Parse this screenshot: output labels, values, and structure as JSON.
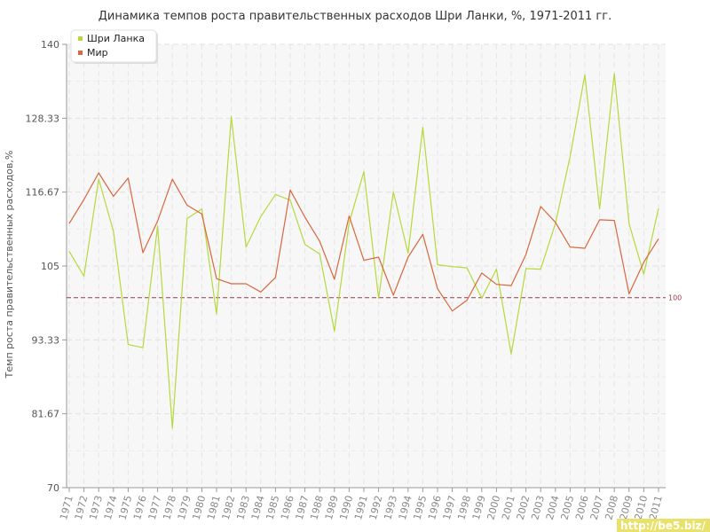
{
  "chart_data": {
    "type": "line",
    "title": "Динамика темпов роста правительственных расходов Шри Ланки, %, 1971-2011 гг.",
    "xlabel": "",
    "ylabel": "Темп роста правительственных расходов,%",
    "ylim": [
      70,
      140
    ],
    "yticks": [
      "70",
      "81.67",
      "93.33",
      "105",
      "116.67",
      "128.33",
      "140"
    ],
    "grid": true,
    "legend_position": "top-left",
    "reference_line": {
      "value": 100,
      "label": "100",
      "color": "#9b3a4a"
    },
    "categories": [
      "1971",
      "1972",
      "1973",
      "1974",
      "1975",
      "1976",
      "1977",
      "1978",
      "1979",
      "1980",
      "1981",
      "1982",
      "1983",
      "1984",
      "1985",
      "1986",
      "1987",
      "1988",
      "1989",
      "1990",
      "1991",
      "1992",
      "1993",
      "1994",
      "1995",
      "1996",
      "1997",
      "1998",
      "1999",
      "2000",
      "2001",
      "2002",
      "2003",
      "2004",
      "2005",
      "2006",
      "2007",
      "2008",
      "2009",
      "2010",
      "2011"
    ],
    "series": [
      {
        "name": "Шри Ланка",
        "color": "#b5d93c",
        "values": [
          107.3,
          103.4,
          118.7,
          110.5,
          92.6,
          92.1,
          111.3,
          79.4,
          112.5,
          114.0,
          97.4,
          128.6,
          108.0,
          112.8,
          116.3,
          115.4,
          108.4,
          106.9,
          94.7,
          111.8,
          119.9,
          99.9,
          116.7,
          107.0,
          126.9,
          105.2,
          104.9,
          104.7,
          99.9,
          104.5,
          91.1,
          104.6,
          104.5,
          111.7,
          122.3,
          135.2,
          114.0,
          135.4,
          111.7,
          103.7,
          114.1
        ]
      },
      {
        "name": "Мир",
        "color": "#d9673f",
        "values": [
          111.7,
          115.5,
          119.7,
          116.0,
          118.9,
          107.1,
          112.1,
          118.7,
          114.6,
          113.2,
          103.0,
          102.2,
          102.2,
          100.9,
          103.2,
          117.0,
          112.7,
          108.9,
          102.9,
          112.9,
          105.9,
          106.4,
          100.4,
          106.4,
          110.0,
          101.4,
          97.9,
          99.6,
          103.9,
          102.1,
          101.9,
          106.8,
          114.4,
          111.9,
          108.0,
          107.8,
          112.3,
          112.2,
          100.6,
          105.6,
          109.3
        ]
      }
    ]
  },
  "watermark": "http://be5.biz/"
}
